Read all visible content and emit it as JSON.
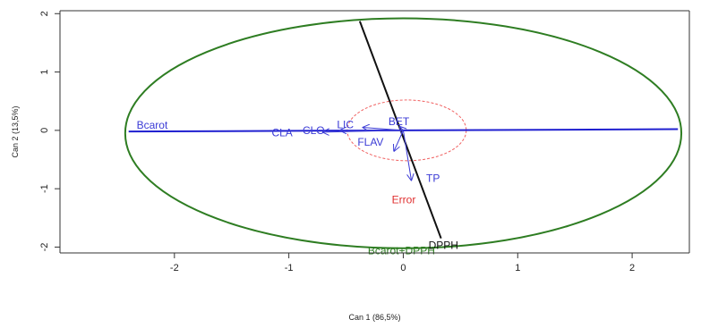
{
  "chart_data": {
    "type": "biplot",
    "xlabel": "Can 1 (86,5%)",
    "ylabel": "Can 2 (13,5%)",
    "xlim": [
      -3.0,
      2.5
    ],
    "ylim": [
      -2.1,
      2.05
    ],
    "x_ticks": [
      -2,
      -1,
      0,
      1,
      2
    ],
    "x_tick_labels": [
      "-2",
      "-1",
      "0",
      "1",
      "2"
    ],
    "y_ticks": [
      -2,
      -1,
      0,
      1,
      2
    ],
    "y_tick_labels": [
      "-2",
      "-1",
      "0",
      "1",
      "2"
    ],
    "grid": false,
    "ellipse": {
      "cx": 0.0,
      "cy": -0.05,
      "rx": 2.43,
      "ry": 1.97,
      "color": "#2e7d22"
    },
    "unit_circle": {
      "cx": 0.03,
      "cy": 0.0,
      "r": 0.52,
      "color": "#f06060"
    },
    "group_axes": [
      {
        "label": "Bcarot",
        "from": [
          -2.4,
          -0.02
        ],
        "to": [
          2.4,
          0.02
        ],
        "label_at": [
          -2.33,
          0.03
        ],
        "color": "#2020d0",
        "width": 2
      },
      {
        "label": "DPPH",
        "from": [
          -0.38,
          1.87
        ],
        "to": [
          0.33,
          -1.85
        ],
        "label_at": [
          0.22,
          -2.03
        ],
        "color": "#111111",
        "width": 2
      }
    ],
    "variable_vectors": [
      {
        "label": "BET",
        "to": [
          -0.03,
          0.06
        ],
        "label_at": [
          -0.13,
          0.09
        ]
      },
      {
        "label": "LIC",
        "to": [
          -0.35,
          0.05
        ],
        "label_at": [
          -0.58,
          0.04
        ]
      },
      {
        "label": "CLO",
        "to": [
          -0.55,
          0.0
        ],
        "label_at": [
          -0.88,
          -0.06
        ]
      },
      {
        "label": "CLA",
        "to": [
          -0.7,
          -0.03
        ],
        "label_at": [
          -1.15,
          -0.1
        ]
      },
      {
        "label": "FLAV",
        "to": [
          -0.08,
          -0.35
        ],
        "label_at": [
          -0.4,
          -0.26
        ]
      },
      {
        "label": "TP",
        "to": [
          0.07,
          -0.85
        ],
        "label_at": [
          0.2,
          -0.88
        ]
      }
    ],
    "vector_color": "#3b3bd6",
    "annotations": [
      {
        "text": "Error",
        "at": [
          -0.1,
          -1.25
        ],
        "color": "#e03030"
      },
      {
        "text": "Bcarot+DPPH",
        "at": [
          -0.31,
          -2.12
        ],
        "color": "#2e7d22"
      }
    ]
  }
}
